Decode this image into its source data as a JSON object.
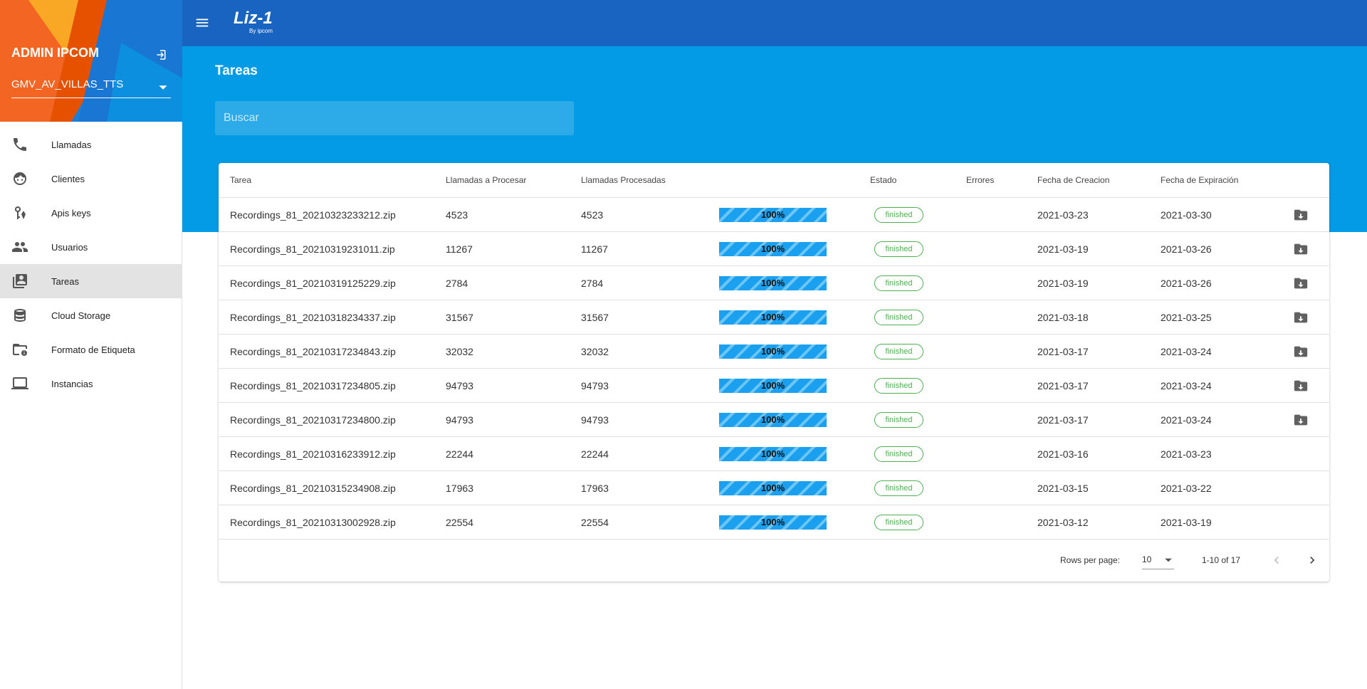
{
  "header": {
    "logo": "Liz-1",
    "logo_sub": "By ipcom"
  },
  "sidebar": {
    "user": "ADMIN IPCOM",
    "account": "GMV_AV_VILLAS_TTS",
    "nav": [
      "Llamadas",
      "Clientes",
      "Apis keys",
      "Usuarios",
      "Tareas",
      "Cloud Storage",
      "Formato de Etiqueta",
      "Instancias"
    ],
    "active": 4
  },
  "page": {
    "title": "Tareas",
    "search_placeholder": "Buscar"
  },
  "table": {
    "headers": [
      "Tarea",
      "Llamadas a Procesar",
      "Llamadas Procesadas",
      "Estado",
      "Errores",
      "Fecha de Creacion",
      "Fecha de Expiración"
    ],
    "rows": [
      {
        "tarea": "Recordings_81_20210323233212.zip",
        "a_procesar": 4523,
        "procesadas": 4523,
        "progress": "100%",
        "estado": "finished",
        "creacion": "2021-03-23",
        "expiracion": "2021-03-30",
        "download": true
      },
      {
        "tarea": "Recordings_81_20210319231011.zip",
        "a_procesar": 11267,
        "procesadas": 11267,
        "progress": "100%",
        "estado": "finished",
        "creacion": "2021-03-19",
        "expiracion": "2021-03-26",
        "download": true
      },
      {
        "tarea": "Recordings_81_20210319125229.zip",
        "a_procesar": 2784,
        "procesadas": 2784,
        "progress": "100%",
        "estado": "finished",
        "creacion": "2021-03-19",
        "expiracion": "2021-03-26",
        "download": true
      },
      {
        "tarea": "Recordings_81_20210318234337.zip",
        "a_procesar": 31567,
        "procesadas": 31567,
        "progress": "100%",
        "estado": "finished",
        "creacion": "2021-03-18",
        "expiracion": "2021-03-25",
        "download": true
      },
      {
        "tarea": "Recordings_81_20210317234843.zip",
        "a_procesar": 32032,
        "procesadas": 32032,
        "progress": "100%",
        "estado": "finished",
        "creacion": "2021-03-17",
        "expiracion": "2021-03-24",
        "download": true
      },
      {
        "tarea": "Recordings_81_20210317234805.zip",
        "a_procesar": 94793,
        "procesadas": 94793,
        "progress": "100%",
        "estado": "finished",
        "creacion": "2021-03-17",
        "expiracion": "2021-03-24",
        "download": true
      },
      {
        "tarea": "Recordings_81_20210317234800.zip",
        "a_procesar": 94793,
        "procesadas": 94793,
        "progress": "100%",
        "estado": "finished",
        "creacion": "2021-03-17",
        "expiracion": "2021-03-24",
        "download": true
      },
      {
        "tarea": "Recordings_81_20210316233912.zip",
        "a_procesar": 22244,
        "procesadas": 22244,
        "progress": "100%",
        "estado": "finished",
        "creacion": "2021-03-16",
        "expiracion": "2021-03-23",
        "download": false
      },
      {
        "tarea": "Recordings_81_20210315234908.zip",
        "a_procesar": 17963,
        "procesadas": 17963,
        "progress": "100%",
        "estado": "finished",
        "creacion": "2021-03-15",
        "expiracion": "2021-03-22",
        "download": false
      },
      {
        "tarea": "Recordings_81_20210313002928.zip",
        "a_procesar": 22554,
        "procesadas": 22554,
        "progress": "100%",
        "estado": "finished",
        "creacion": "2021-03-12",
        "expiracion": "2021-03-19",
        "download": false
      }
    ]
  },
  "pagination": {
    "rows_label": "Rows per page:",
    "rows_value": "10",
    "range": "1-10 of 17"
  }
}
